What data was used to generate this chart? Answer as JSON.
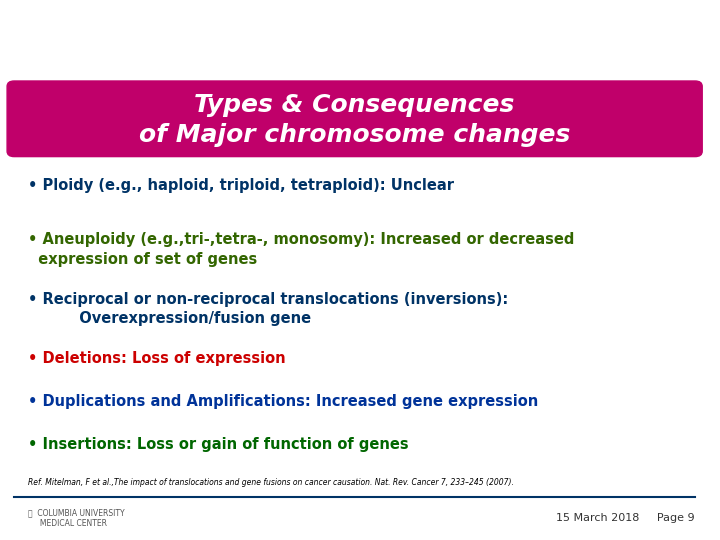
{
  "title_line1": "Types & Consequences",
  "title_line2": "of Major chromosome changes",
  "title_bg_color": "#C0006A",
  "title_text_color": "#FFFFFF",
  "bg_color": "#FFFFFF",
  "bullets": [
    {
      "text": "• Ploidy (e.g., haploid, triploid, tetraploid): Unclear",
      "color": "#003366",
      "style": "normal",
      "indent": 0
    },
    {
      "text": "• Aneuploidy (e.g.,tri-,tetra-, monosomy): Increased or decreased\n  expression of set of genes",
      "color": "#336600",
      "style": "normal",
      "indent": 0
    },
    {
      "text": "• Reciprocal or non-reciprocal translocations (inversions):\n          Overexpression/fusion gene",
      "color": "#003366",
      "style": "normal",
      "indent": 0
    },
    {
      "text": "• Deletions: Loss of expression",
      "color": "#CC0000",
      "style": "normal",
      "indent": 0
    },
    {
      "text": "• Duplications and Amplifications: Increased gene expression",
      "color": "#003399",
      "style": "normal",
      "indent": 0
    },
    {
      "text": "• Insertions: Loss or gain of function of genes",
      "color": "#006600",
      "style": "normal",
      "indent": 0
    }
  ],
  "ref_text": "Ref. Mitelman, F et al.,The impact of translocations and gene fusions on cancer causation. Nat. Rev. Cancer 7, 233–245 (2007).",
  "ref_color": "#000000",
  "footer_date": "15 March 2018",
  "footer_page": "Page 9",
  "footer_text_color": "#333333",
  "divider_color": "#003366",
  "logo_text1": "COLUMBIA UNIVERSITY",
  "logo_text2": "MEDICAL CENTER"
}
